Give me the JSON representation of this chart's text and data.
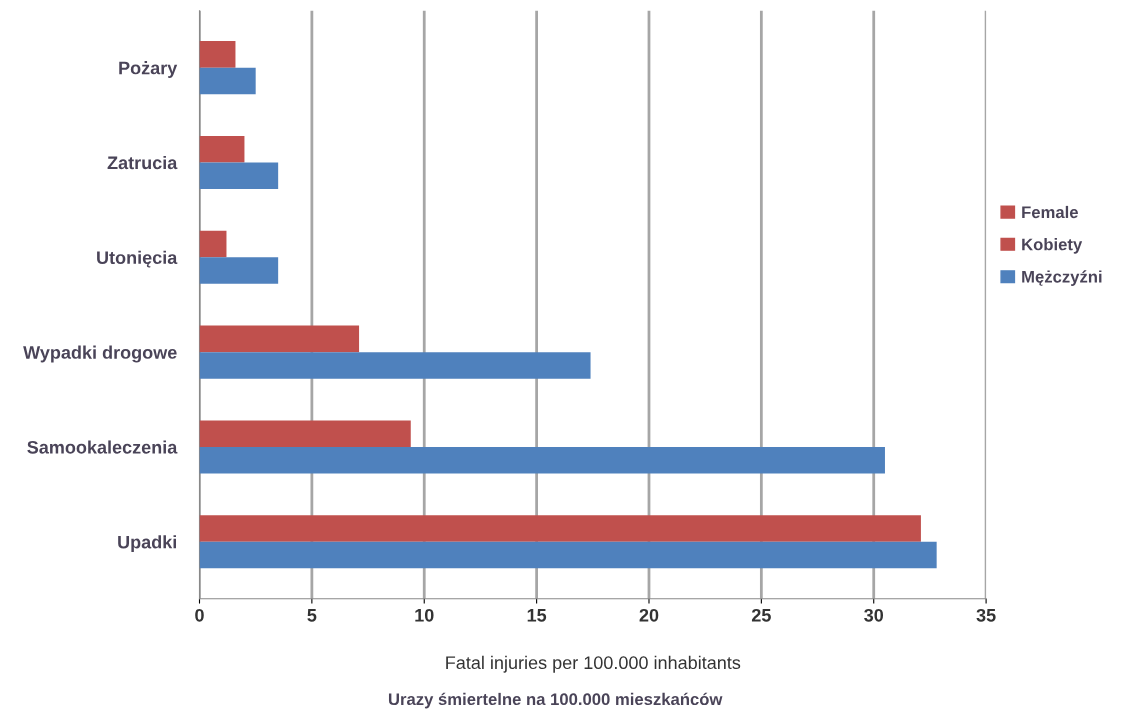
{
  "chart_data": {
    "type": "bar",
    "orientation": "horizontal",
    "categories": [
      "Pożary",
      "Zatrucia",
      "Utonięcia",
      "Wypadki drogowe",
      "Samookaleczenia",
      "Upadki"
    ],
    "series": [
      {
        "name": "Female",
        "color": "#c0504d",
        "values": [
          1.6,
          2.0,
          1.2,
          7.1,
          9.4,
          32.1
        ]
      },
      {
        "name": "Mężczyźni",
        "color": "#4f81bd",
        "values": [
          2.5,
          3.5,
          3.5,
          17.4,
          30.5,
          32.8
        ]
      }
    ],
    "xlabel": "Fatal injuries per 100.000 inhabitants",
    "annotations": [
      "Kobiety",
      "Urazy śmiertelne na 100.000 mieszkańców"
    ],
    "xlim": [
      0,
      35
    ],
    "xticks": [
      0,
      5,
      10,
      15,
      20,
      25,
      30,
      35
    ],
    "grid": "x",
    "legend": "right"
  }
}
